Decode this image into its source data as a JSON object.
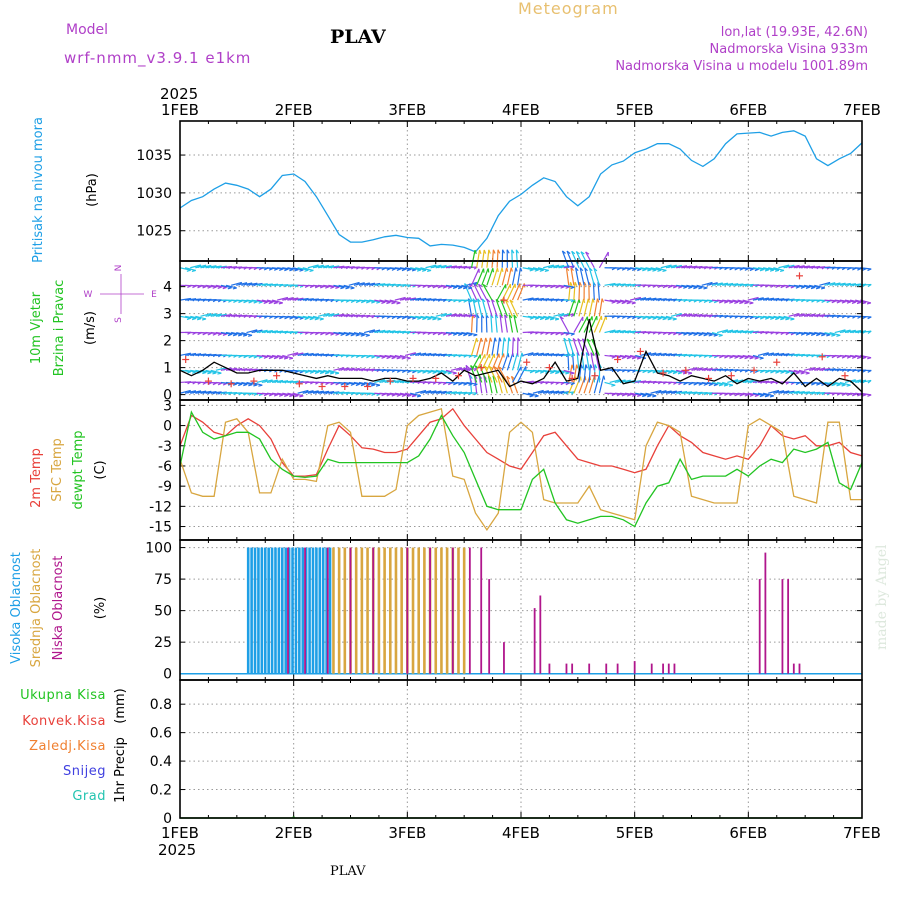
{
  "header": {
    "model_label": "Model",
    "model_name": "wrf-nmm_v3.9.1 e1km",
    "station": "PLAV",
    "product": "Meteogram",
    "lonlat": "lon,lat (19.93E, 42.6N)",
    "altitude": "Nadmorska Visina 933m",
    "model_altitude": "Nadmorska Visina u modelu 1001.89m",
    "year_top": "2025",
    "year_bottom": "2025",
    "footer_station": "PLAV",
    "watermark": "made by Angel"
  },
  "colors": {
    "pressure": "#1e9fe6",
    "temp2m": "#e8403a",
    "sfc": "#d8a640",
    "dewpt": "#22c422",
    "high_cloud": "#1e9fe6",
    "mid_cloud": "#d8a640",
    "low_cloud": "#b0168c",
    "wind_label": "#22c422",
    "compass": "#b040c8",
    "header_purple": "#b040c8",
    "meteogram": "#e8c070",
    "total_precip": "#22c422",
    "conv_precip": "#e8403a",
    "frozen_precip": "#f08030",
    "snow": "#4040e0",
    "hail": "#22c4b0"
  },
  "chart_data": [
    {
      "id": "pressure",
      "type": "line",
      "ylabel_name": "Pritisak na nivou mora",
      "ylabel_unit": "(hPa)",
      "x_categories": [
        "1FEB",
        "2FEB",
        "3FEB",
        "4FEB",
        "5FEB",
        "6FEB",
        "7FEB"
      ],
      "ylim": [
        1021,
        1039.5
      ],
      "yticks": [
        1025,
        1030,
        1035
      ],
      "grid": true,
      "series": [
        {
          "x": [
            0,
            0.1,
            0.2,
            0.3,
            0.4,
            0.5,
            0.6,
            0.7,
            0.8,
            0.9,
            1.0,
            1.1,
            1.2,
            1.3,
            1.4,
            1.5,
            1.6,
            1.7,
            1.8,
            1.9,
            2.0,
            2.1,
            2.2,
            2.3,
            2.4,
            2.5,
            2.6,
            2.7,
            2.8,
            2.9,
            3.0,
            3.1,
            3.2,
            3.3,
            3.4,
            3.5,
            3.6,
            3.7,
            3.8,
            3.9,
            4.0,
            4.1,
            4.2,
            4.3,
            4.4,
            4.5,
            4.6,
            4.7,
            4.8,
            4.9,
            5.0,
            5.1,
            5.2,
            5.3,
            5.4,
            5.5,
            5.6,
            5.7,
            5.8,
            5.9,
            6.0
          ],
          "y": [
            1028,
            1029,
            1029.5,
            1030.5,
            1031.3,
            1031,
            1030.5,
            1029.5,
            1030.5,
            1032.3,
            1032.5,
            1031.5,
            1029.5,
            1027,
            1024.5,
            1023.5,
            1023.5,
            1023.8,
            1024.2,
            1024.4,
            1024.1,
            1024,
            1023,
            1023.2,
            1023.1,
            1022.8,
            1022.2,
            1024,
            1027,
            1028.9,
            1029.8,
            1031,
            1032,
            1031.5,
            1029.5,
            1028.3,
            1029.5,
            1032.5,
            1033.7,
            1034.2,
            1035.3,
            1035.8,
            1036.5,
            1036.5,
            1035.8,
            1034.3,
            1033.5,
            1034.5,
            1036.5,
            1037.8,
            1037.9,
            1038,
            1037.5,
            1038,
            1038.2,
            1037.5,
            1034.5,
            1033.6,
            1034.5,
            1035.2,
            1036.6
          ],
          "color_key": "pressure"
        }
      ]
    },
    {
      "id": "wind",
      "type": "line",
      "ylabel_name": "10m Vjetar",
      "ylabel_name2": "Brzina i Pravac",
      "ylabel_unit": "(m/s)",
      "compass": {
        "north": "N",
        "south": "S",
        "west": "W",
        "east": "E"
      },
      "ylim": [
        -0.2,
        4.95
      ],
      "yticks": [
        0,
        1,
        2,
        3,
        4
      ],
      "grid": true,
      "series": [
        {
          "x": [
            0,
            0.1,
            0.2,
            0.3,
            0.4,
            0.5,
            0.6,
            0.7,
            0.8,
            0.9,
            1.0,
            1.1,
            1.2,
            1.3,
            1.4,
            1.5,
            1.6,
            1.7,
            1.8,
            1.9,
            2.0,
            2.1,
            2.2,
            2.3,
            2.4,
            2.5,
            2.6,
            2.7,
            2.8,
            2.9,
            3.0,
            3.1,
            3.2,
            3.3,
            3.4,
            3.5,
            3.6,
            3.7,
            3.8,
            3.9,
            4.0,
            4.1,
            4.2,
            4.3,
            4.4,
            4.5,
            4.6,
            4.7,
            4.8,
            4.9,
            5.0,
            5.1,
            5.2,
            5.3,
            5.4,
            5.5,
            5.6,
            5.7,
            5.8,
            5.9,
            6.0
          ],
          "y": [
            0.9,
            0.7,
            0.9,
            1.2,
            1.0,
            0.8,
            0.8,
            0.9,
            0.9,
            0.9,
            0.8,
            0.7,
            0.6,
            0.7,
            0.6,
            0.6,
            0.6,
            0.5,
            0.6,
            0.6,
            0.5,
            0.5,
            0.6,
            0.8,
            0.5,
            0.9,
            0.7,
            0.8,
            0.9,
            0.3,
            0.5,
            0.4,
            0.6,
            1.2,
            0.5,
            0.6,
            2.8,
            0.9,
            1.0,
            0.4,
            0.5,
            1.6,
            0.8,
            0.7,
            0.5,
            0.7,
            0.6,
            0.5,
            0.7,
            0.4,
            0.6,
            0.5,
            0.6,
            0.4,
            0.8,
            0.3,
            0.6,
            0.3,
            0.6,
            0.5,
            0.1
          ],
          "color": "#000000"
        },
        {
          "x": [
            0.05,
            0.25,
            0.45,
            0.65,
            0.85,
            1.05,
            1.25,
            1.45,
            1.65,
            1.85,
            2.05,
            2.25,
            2.45,
            2.65,
            2.85,
            3.05,
            3.25,
            3.45,
            3.65,
            3.85,
            4.05,
            4.25,
            4.45,
            4.65,
            4.85,
            5.05,
            5.25,
            5.45,
            5.65,
            5.85
          ],
          "y": [
            1.3,
            0.5,
            0.4,
            0.5,
            0.7,
            0.4,
            0.3,
            0.3,
            0.3,
            0.5,
            0.6,
            0.6,
            0.7,
            1.0,
            3.5,
            1.2,
            1.0,
            0.6,
            0.7,
            1.3,
            1.6,
            0.8,
            0.9,
            0.6,
            0.7,
            0.9,
            1.2,
            4.4,
            1.4,
            0.7
          ],
          "marker": "+",
          "color_key": "temp2m"
        }
      ]
    },
    {
      "id": "temperature",
      "type": "line",
      "ylabel_name": "2m Temp",
      "ylabel_name2": "SFC Temp",
      "ylabel_name3": "dewpt Temp",
      "ylabel_unit": "(C)",
      "ylim": [
        -17,
        3.8
      ],
      "yticks": [
        3,
        0,
        -3,
        -6,
        -9,
        -12,
        -15
      ],
      "grid": true,
      "series": [
        {
          "name": "2m Temp",
          "color_key": "temp2m",
          "x": [
            0,
            0.1,
            0.2,
            0.3,
            0.4,
            0.5,
            0.6,
            0.7,
            0.8,
            0.9,
            1.0,
            1.1,
            1.2,
            1.3,
            1.4,
            1.5,
            1.6,
            1.7,
            1.8,
            1.9,
            2.0,
            2.1,
            2.2,
            2.3,
            2.4,
            2.5,
            2.6,
            2.7,
            2.8,
            2.9,
            3.0,
            3.1,
            3.2,
            3.3,
            3.4,
            3.5,
            3.6,
            3.7,
            3.8,
            3.9,
            4.0,
            4.1,
            4.2,
            4.3,
            4.4,
            4.5,
            4.6,
            4.7,
            4.8,
            4.9,
            5.0,
            5.1,
            5.2,
            5.3,
            5.4,
            5.5,
            5.6,
            5.7,
            5.8,
            5.9,
            6.0
          ],
          "y": [
            -3,
            1.5,
            0.5,
            -1,
            -1.5,
            0,
            1,
            0,
            -2,
            -5.5,
            -7.5,
            -7.5,
            -7.3,
            -3.5,
            0,
            -1.5,
            -3.3,
            -3.5,
            -4,
            -4,
            -3.5,
            -1.5,
            0.5,
            1,
            2.5,
            0,
            -2,
            -4,
            -5,
            -6,
            -6.5,
            -4,
            -1.5,
            -1,
            -3,
            -5,
            -5.5,
            -6,
            -6,
            -6.5,
            -7,
            -6.5,
            -3,
            0,
            -1.5,
            -2.5,
            -4,
            -4.5,
            -5,
            -4.5,
            -5,
            -3,
            0,
            -1.5,
            -2,
            -1.5,
            -3,
            -3,
            -2.5,
            -4,
            -4.5
          ]
        },
        {
          "name": "SFC Temp",
          "color_key": "sfc",
          "x": [
            0,
            0.1,
            0.2,
            0.3,
            0.4,
            0.5,
            0.6,
            0.7,
            0.8,
            0.9,
            1.0,
            1.1,
            1.2,
            1.3,
            1.4,
            1.5,
            1.6,
            1.7,
            1.8,
            1.9,
            2.0,
            2.1,
            2.2,
            2.3,
            2.4,
            2.5,
            2.6,
            2.7,
            2.8,
            2.9,
            3.0,
            3.1,
            3.2,
            3.3,
            3.4,
            3.5,
            3.6,
            3.7,
            3.8,
            3.9,
            4.0,
            4.1,
            4.2,
            4.3,
            4.4,
            4.5,
            4.6,
            4.7,
            4.8,
            4.9,
            5.0,
            5.1,
            5.2,
            5.3,
            5.4,
            5.5,
            5.6,
            5.7,
            5.8,
            5.9,
            6.0
          ],
          "y": [
            -5,
            -10,
            -10.5,
            -10.5,
            0.5,
            1,
            -1,
            -10,
            -10,
            -5,
            -8,
            -8,
            -8.3,
            0,
            0.5,
            -1,
            -10.5,
            -10.5,
            -10.5,
            -9.5,
            0,
            1.5,
            2,
            2.5,
            -7.5,
            -8,
            -13,
            -15.5,
            -13,
            -1,
            0.5,
            -1,
            -11,
            -11.5,
            -11.5,
            -11.5,
            -9,
            -12.5,
            -13,
            -13.5,
            -14,
            -3,
            0.5,
            0,
            -1,
            -10.5,
            -11,
            -11.5,
            -11.5,
            -11.5,
            0,
            1,
            0,
            -1,
            -10.5,
            -11,
            -11.5,
            0.5,
            0.5,
            -11,
            -11
          ]
        },
        {
          "name": "dewpt Temp",
          "color_key": "dewpt",
          "x": [
            0,
            0.1,
            0.2,
            0.3,
            0.4,
            0.5,
            0.6,
            0.7,
            0.8,
            0.9,
            1.0,
            1.1,
            1.2,
            1.3,
            1.4,
            1.5,
            1.6,
            1.7,
            1.8,
            1.9,
            2.0,
            2.1,
            2.2,
            2.3,
            2.4,
            2.5,
            2.6,
            2.7,
            2.8,
            2.9,
            3.0,
            3.1,
            3.2,
            3.3,
            3.4,
            3.5,
            3.6,
            3.7,
            3.8,
            3.9,
            4.0,
            4.1,
            4.2,
            4.3,
            4.4,
            4.5,
            4.6,
            4.7,
            4.8,
            4.9,
            5.0,
            5.1,
            5.2,
            5.3,
            5.4,
            5.5,
            5.6,
            5.7,
            5.8,
            5.9,
            6.0
          ],
          "y": [
            -6,
            2,
            -1,
            -2,
            -1.5,
            -1,
            -1,
            -2,
            -5,
            -6.5,
            -7.5,
            -7.7,
            -7.5,
            -5,
            -5.5,
            -5.5,
            -5.5,
            -5.5,
            -5.5,
            -5.5,
            -5.5,
            -4.5,
            -2,
            1.5,
            -1.5,
            -4,
            -8,
            -12,
            -12.5,
            -12.5,
            -12.5,
            -8,
            -6.5,
            -11.5,
            -14,
            -14.5,
            -14,
            -13.5,
            -13.5,
            -14,
            -15,
            -11.5,
            -9,
            -8.5,
            -5,
            -8,
            -7.5,
            -7.5,
            -7.5,
            -6.5,
            -7.5,
            -6,
            -5,
            -5.5,
            -3.5,
            -4,
            -3.5,
            -2.5,
            -8.5,
            -9.5,
            -5.5
          ]
        }
      ]
    },
    {
      "id": "clouds",
      "type": "bar",
      "ylabel_name": "Visoka Oblacnost",
      "ylabel_name2": "Srednja Oblacnost",
      "ylabel_name3": "Niska Oblacnost",
      "ylabel_unit": "(%)",
      "ylim": [
        -5,
        106
      ],
      "yticks": [
        0,
        25,
        50,
        75,
        100
      ],
      "grid": true,
      "series": [
        {
          "name": "Visoka Oblacnost",
          "color_key": "high_cloud",
          "x": [
            0.6,
            0.63,
            0.66,
            0.69,
            0.72,
            0.75,
            0.78,
            0.81,
            0.84,
            0.87,
            0.9,
            0.93,
            0.96,
            0.99,
            1.02,
            1.05,
            1.08,
            1.11,
            1.14,
            1.17,
            1.2,
            1.23,
            1.26,
            1.29,
            1.32
          ],
          "y": [
            100,
            100,
            100,
            100,
            100,
            100,
            100,
            100,
            100,
            100,
            100,
            100,
            100,
            100,
            100,
            100,
            100,
            100,
            100,
            100,
            100,
            100,
            100,
            100,
            100
          ]
        },
        {
          "name": "Srednja Oblacnost",
          "color_key": "mid_cloud",
          "x": [
            1.35,
            1.4,
            1.45,
            1.5,
            1.55,
            1.6,
            1.65,
            1.7,
            1.75,
            1.8,
            1.85,
            1.9,
            1.95,
            2.0,
            2.05,
            2.1,
            2.15,
            2.2,
            2.25,
            2.3,
            2.35,
            2.4,
            2.45,
            2.5
          ],
          "y": [
            100,
            100,
            100,
            100,
            100,
            100,
            100,
            100,
            100,
            100,
            100,
            100,
            100,
            100,
            100,
            100,
            100,
            100,
            100,
            100,
            100,
            100,
            100,
            100
          ]
        },
        {
          "name": "Niska Oblacnost",
          "color_key": "low_cloud",
          "x": [
            0.95,
            1.1,
            1.3,
            1.5,
            1.7,
            2.0,
            2.2,
            2.4,
            2.55,
            2.65,
            2.72,
            2.85,
            3.12,
            3.17,
            3.25,
            3.4,
            3.45,
            3.6,
            3.75,
            3.85,
            4.0,
            4.15,
            4.25,
            4.3,
            4.35,
            5.1,
            5.15,
            5.3,
            5.35,
            5.4,
            5.45
          ],
          "y": [
            100,
            100,
            100,
            100,
            100,
            100,
            100,
            100,
            100,
            100,
            75,
            25,
            52,
            62,
            8,
            8,
            8,
            8,
            8,
            8,
            10,
            8,
            8,
            8,
            8,
            75,
            96,
            75,
            75,
            8,
            8
          ]
        }
      ]
    },
    {
      "id": "precip",
      "type": "bar",
      "ylabel_name": "1hr Precip",
      "ylabel_unit": "(mm)",
      "legend": [
        "Ukupna Kisa",
        "Konvek.Kisa",
        "Zaledj.Kisa",
        "Snijeg",
        "Grad"
      ],
      "x_categories": [
        "1FEB",
        "2FEB",
        "3FEB",
        "4FEB",
        "5FEB",
        "6FEB",
        "7FEB"
      ],
      "ylim": [
        0,
        0.97
      ],
      "yticks": [
        0,
        0.2,
        0.4,
        0.6,
        0.8
      ],
      "ytick_labels": [
        "0",
        "0.2",
        "0.4",
        "0.6",
        "0.8"
      ],
      "grid": true,
      "series": [
        {
          "name": "Ukupna Kisa",
          "color_key": "total_precip",
          "x": [
            1.0
          ],
          "y": [
            0.01
          ]
        }
      ]
    }
  ]
}
